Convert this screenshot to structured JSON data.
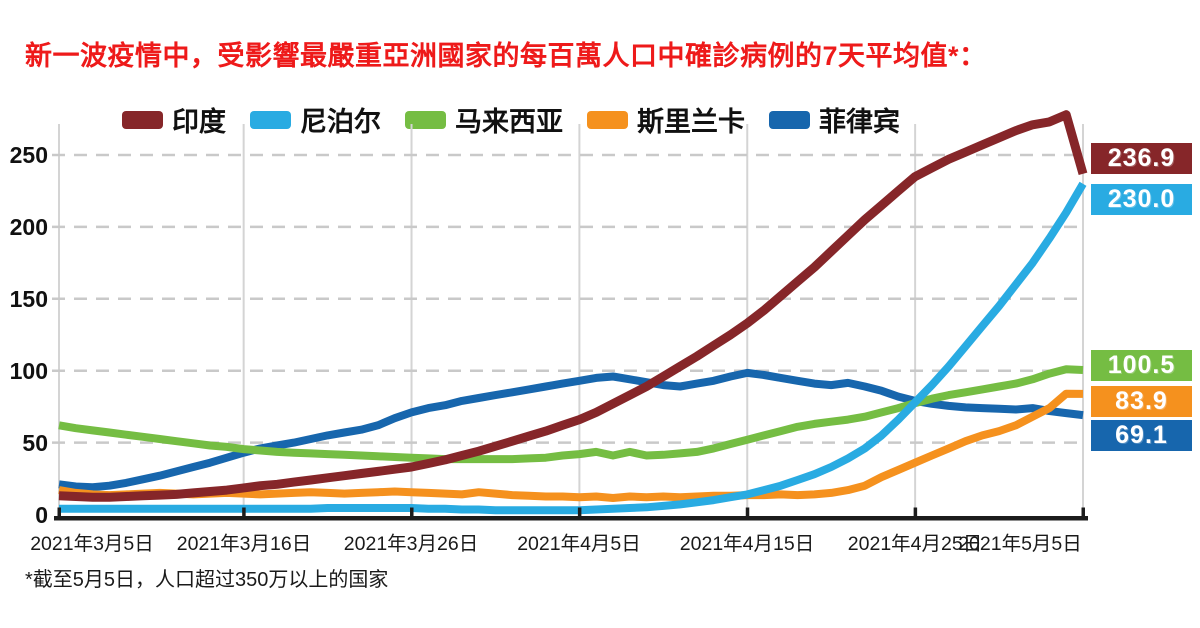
{
  "footnote": "*截至5月5日，人口超过350万以上的国家",
  "colors": {
    "title": "#ee1a1a",
    "grid_dashed": "#c9c9c9",
    "grid_vertical": "#d4d4d4",
    "axis": "#1c1c1c",
    "text": "#1a1a1a",
    "background": "#ffffff"
  },
  "chart_data": {
    "type": "line",
    "title": "新一波疫情中，受影響最嚴重亞洲國家的每百萬人口中確診病例的7天平均值*：",
    "legend_position": "top",
    "grid": true,
    "xlim_days": [
      0,
      61
    ],
    "x_tick_days": [
      0,
      11,
      21,
      31,
      41,
      51,
      61
    ],
    "x_tick_labels": [
      "2021年3月5日",
      "2021年3月16日",
      "2021年3月26日",
      "2021年4月5日",
      "2021年4月15日",
      "2021年4月25日",
      "2021年5月5日"
    ],
    "y_ticks": [
      0,
      50,
      100,
      150,
      200,
      250
    ],
    "ylim": [
      0,
      285
    ],
    "series": [
      {
        "key": "india",
        "name": "印度",
        "color": "#862629",
        "end_label": "236.9",
        "end_value": 236.9,
        "values": [
          13,
          12.5,
          12,
          12,
          12.5,
          13,
          13.5,
          14,
          15,
          16,
          17,
          18.5,
          20,
          21,
          22.5,
          24,
          25.5,
          27,
          28.5,
          30,
          31.5,
          33,
          35.5,
          38,
          41,
          44,
          47.5,
          51,
          54.5,
          58,
          62,
          66,
          71,
          77,
          83,
          89,
          96,
          103,
          110,
          117.5,
          125,
          133,
          142,
          152,
          162,
          172,
          183,
          194,
          205,
          215,
          225,
          235,
          241,
          247,
          252,
          257,
          262,
          267,
          271,
          273,
          278,
          236.9
        ]
      },
      {
        "key": "nepal",
        "name": "尼泊尔",
        "color": "#29abe2",
        "end_label": "230.0",
        "end_value": 230.0,
        "values": [
          4,
          4,
          4,
          4,
          4,
          4,
          4,
          4,
          4,
          4,
          4,
          4,
          4,
          4,
          4,
          4,
          4.5,
          4.5,
          4.5,
          4.5,
          4.5,
          4.5,
          4,
          4,
          3.5,
          3.5,
          3,
          3,
          3,
          3,
          3,
          3,
          3.5,
          4,
          4.5,
          5,
          6,
          7,
          8.5,
          10,
          12,
          14,
          17,
          20,
          24,
          28,
          33,
          39,
          46,
          55,
          66,
          78,
          90,
          103,
          117,
          131,
          145,
          160,
          175,
          192,
          210,
          230
        ]
      },
      {
        "key": "malaysia",
        "name": "马来西亚",
        "color": "#75bd43",
        "end_label": "100.5",
        "end_value": 100.5,
        "values": [
          62,
          60,
          58.5,
          57,
          55.5,
          54,
          52.5,
          51,
          49.5,
          48,
          47,
          45.5,
          44.5,
          43.5,
          43,
          42.5,
          42,
          41.5,
          41,
          40.5,
          40,
          39.5,
          39,
          38.5,
          38.5,
          38.5,
          38.5,
          38.5,
          39,
          39.5,
          41,
          42,
          43.5,
          41,
          43.5,
          41,
          41.5,
          42.5,
          43.5,
          46,
          49,
          52,
          55,
          58,
          61,
          63,
          64.5,
          66,
          68,
          71,
          74,
          77.5,
          80.5,
          83,
          85,
          87,
          89,
          91,
          94,
          98,
          101,
          100.5
        ]
      },
      {
        "key": "sri-lanka",
        "name": "斯里兰卡",
        "color": "#f5911e",
        "end_label": "83.9",
        "end_value": 83.9,
        "values": [
          17,
          15,
          14,
          13.5,
          14,
          14.5,
          15,
          14.5,
          14,
          14.5,
          15,
          14.5,
          14,
          14.5,
          15,
          15.5,
          15,
          14.5,
          15,
          15.5,
          16,
          15.5,
          15,
          14.5,
          14,
          15.5,
          14.5,
          13.5,
          13,
          12.5,
          12.5,
          12,
          12.5,
          11.5,
          12.5,
          12,
          12.5,
          12,
          12.5,
          13,
          13,
          13.5,
          13.5,
          14,
          13.5,
          14,
          15,
          17,
          20,
          26,
          31,
          36,
          41,
          46,
          51,
          55,
          58,
          62,
          68,
          74,
          84,
          83.9
        ]
      },
      {
        "key": "philippines",
        "name": "菲律宾",
        "color": "#1766ad",
        "end_label": "69.1",
        "end_value": 69.1,
        "values": [
          21,
          19.5,
          19,
          20,
          22,
          24.5,
          27,
          30,
          33,
          36,
          39.5,
          43,
          46,
          48,
          50,
          52.5,
          55,
          57,
          59,
          62,
          67,
          71,
          74,
          76,
          79,
          81,
          83,
          85,
          87,
          89,
          91,
          93,
          95,
          96,
          94,
          92,
          90,
          89,
          91,
          93,
          96,
          98.5,
          97,
          95,
          93,
          91,
          90,
          91.5,
          89,
          86,
          82,
          79,
          77,
          75.5,
          74.5,
          74,
          73.5,
          73,
          74,
          72,
          70.5,
          69.1
        ]
      }
    ]
  },
  "layout": {
    "endlabel_tops": [
      143,
      184,
      350,
      386,
      420
    ],
    "xlabel_centers": [
      92,
      244,
      411,
      579,
      747,
      915,
      1020
    ]
  }
}
